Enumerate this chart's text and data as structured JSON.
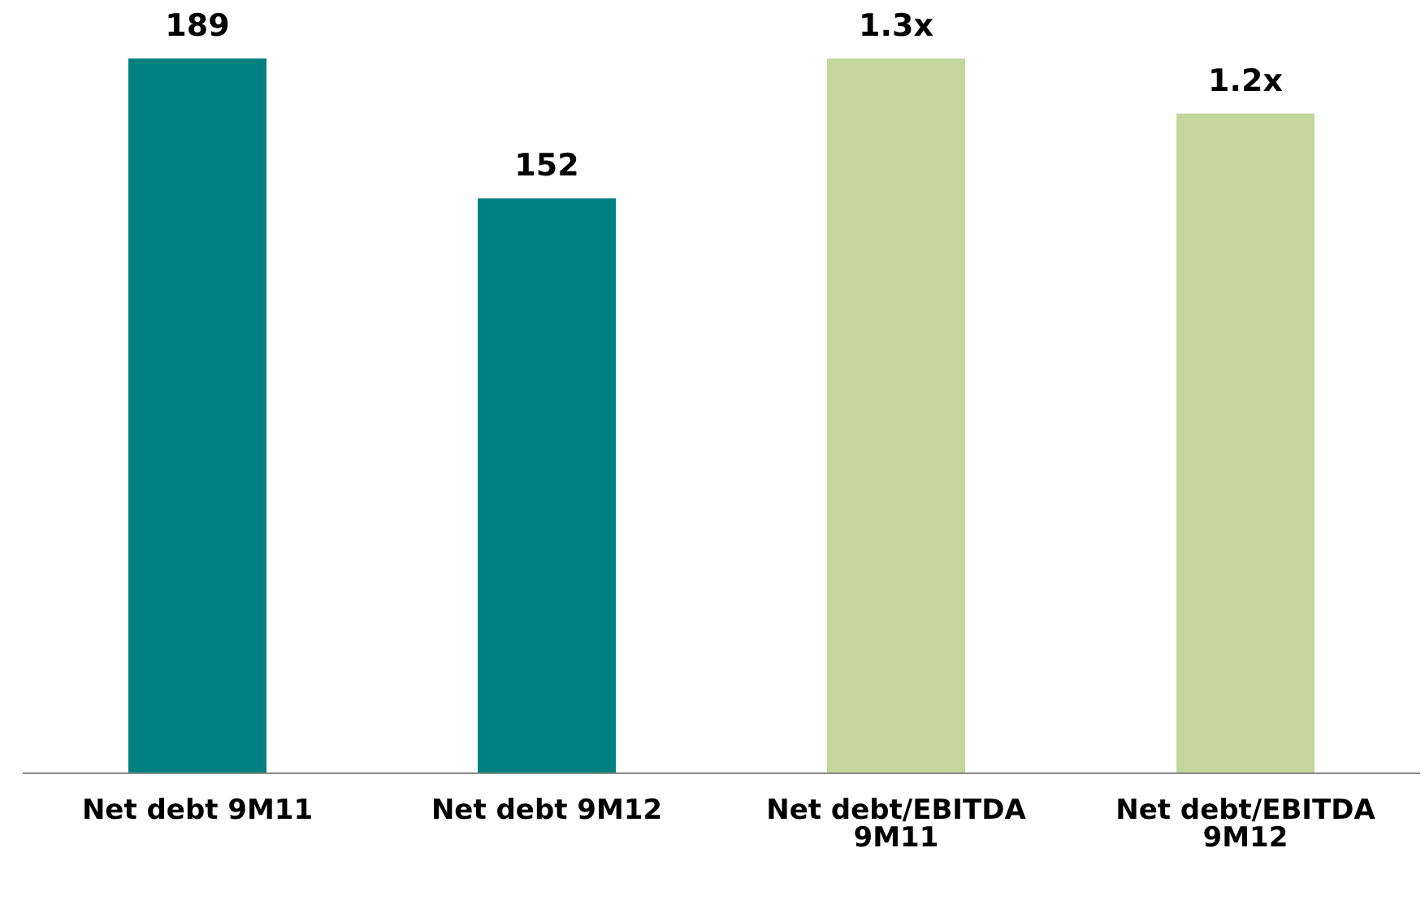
{
  "chart_data": {
    "type": "bar",
    "categories": [
      "Net debt 9M11",
      "Net debt 9M12",
      "Net debt/EBITDA 9M11",
      "Net debt/EBITDA 9M12"
    ],
    "tick_labels": "x",
    "series": [
      {
        "color": "#008080",
        "values": [
          189,
          152,
          null,
          null
        ],
        "value_labels": [
          "189",
          "152",
          null,
          null
        ]
      },
      {
        "color": "#c3d69b",
        "axis": "y2",
        "values": [
          null,
          null,
          1.3,
          1.2
        ],
        "value_labels": [
          null,
          null,
          "1.3x",
          "1.2x"
        ]
      }
    ]
  }
}
